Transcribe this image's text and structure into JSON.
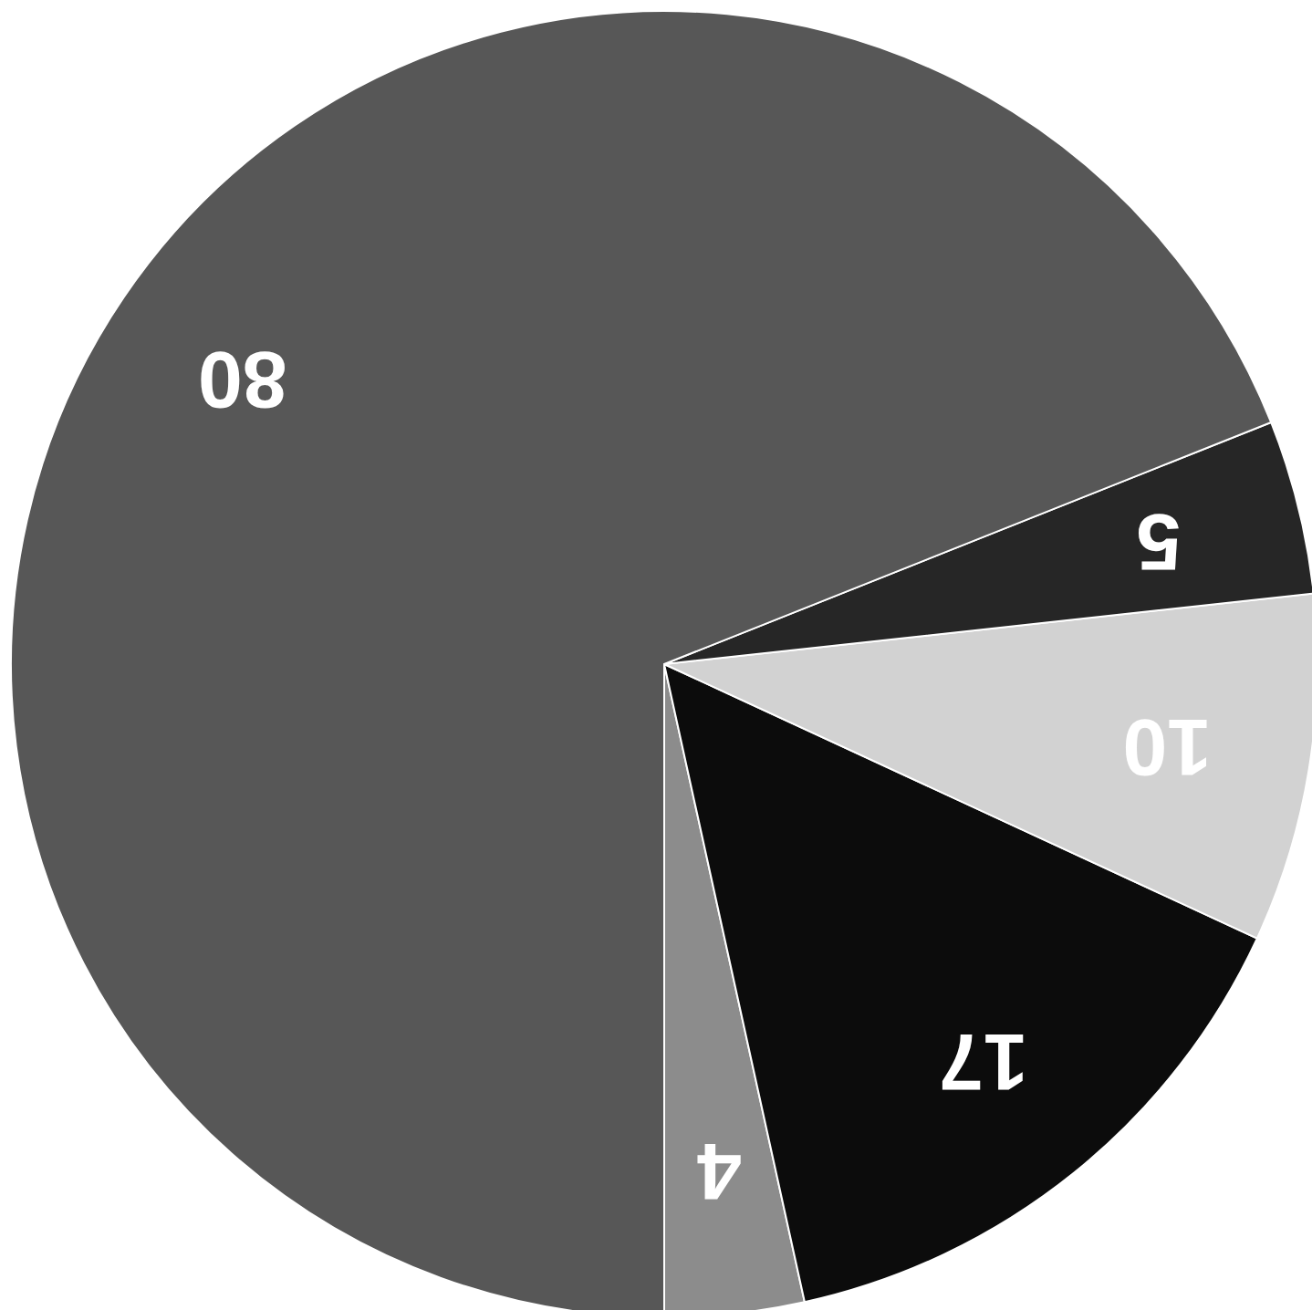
{
  "chart_data": {
    "type": "pie",
    "categories": [
      null,
      null,
      null,
      null,
      null
    ],
    "values": [
      4,
      17,
      10,
      5,
      80
    ],
    "colors": [
      "#8c8c8c",
      "#0c0c0c",
      "#d2d2d2",
      "#262626",
      "#575757"
    ],
    "data_labels": true
  }
}
